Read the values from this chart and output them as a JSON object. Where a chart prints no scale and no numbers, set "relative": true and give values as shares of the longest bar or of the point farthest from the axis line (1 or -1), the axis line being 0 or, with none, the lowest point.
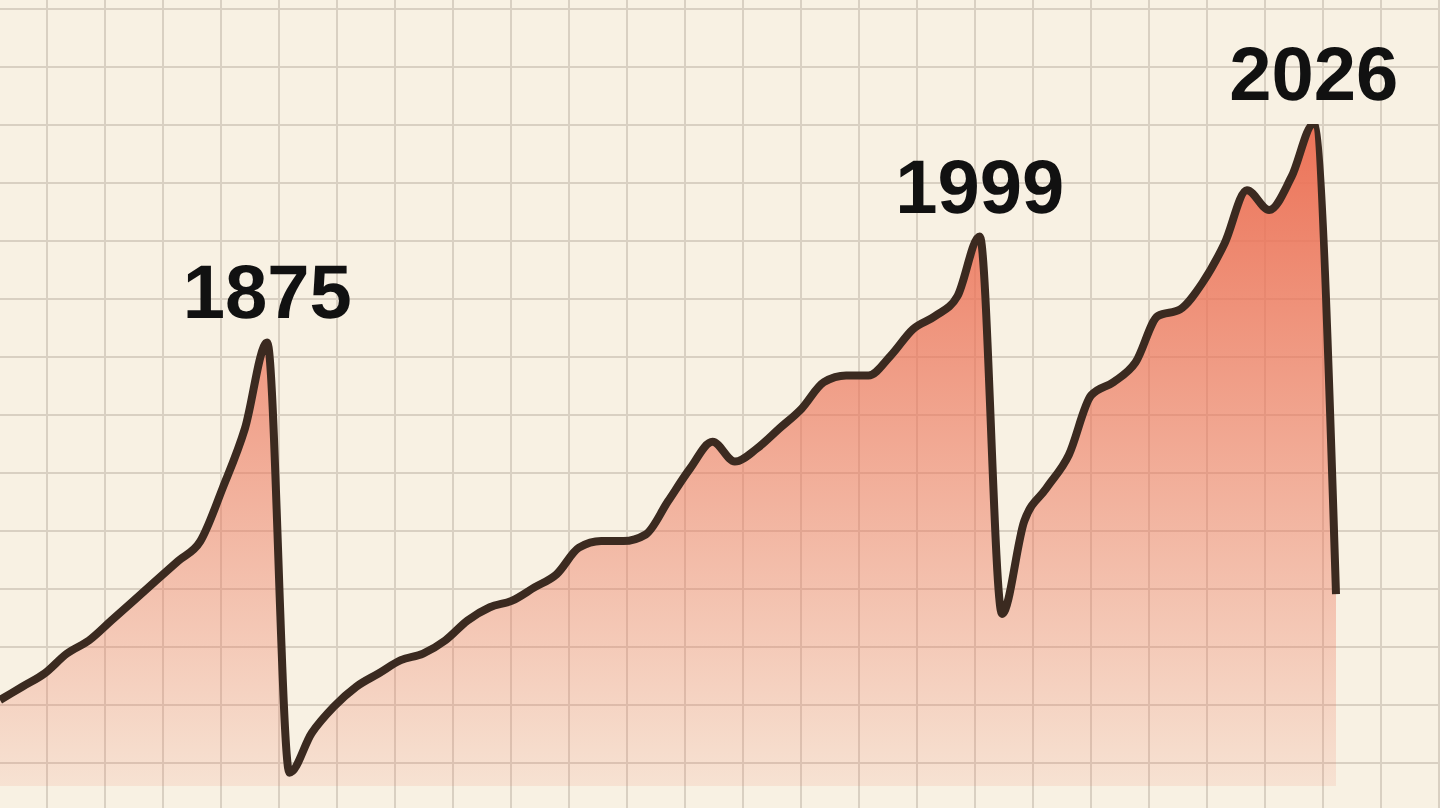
{
  "chart_data": {
    "type": "area",
    "relative": true,
    "annotations": [
      {
        "text": "1875",
        "y": 0.67
      },
      {
        "text": "1999",
        "y": 0.83
      },
      {
        "text": "2026",
        "y": 1
      }
    ],
    "categories": [
      null,
      null,
      null,
      null,
      null,
      null,
      null,
      null,
      null,
      null,
      null,
      null,
      null,
      null,
      null,
      null,
      null,
      null,
      null,
      null,
      null,
      null,
      null,
      null,
      null,
      null,
      null,
      null,
      null,
      null,
      null,
      null,
      null,
      null,
      null,
      null,
      null,
      null,
      null,
      null,
      null,
      null,
      null,
      null,
      null,
      null,
      null,
      null,
      null,
      null,
      null,
      null,
      null,
      null,
      null,
      null,
      null,
      null,
      null,
      null,
      null
    ],
    "series": [
      {
        "color": "#ec7358",
        "values": [
          0.13,
          0.15,
          0.17,
          0.2,
          0.22,
          0.25,
          0.28,
          0.31,
          0.34,
          0.37,
          0.45,
          0.54,
          0.67,
          0.02,
          0.08,
          0.12,
          0.15,
          0.17,
          0.19,
          0.2,
          0.22,
          0.25,
          0.27,
          0.28,
          0.3,
          0.32,
          0.36,
          0.37,
          0.37,
          0.38,
          0.43,
          0.48,
          0.52,
          0.49,
          0.51,
          0.54,
          0.57,
          0.61,
          0.62,
          0.62,
          0.65,
          0.69,
          0.71,
          0.74,
          0.83,
          0.26,
          0.4,
          0.45,
          0.5,
          0.59,
          0.61,
          0.64,
          0.71,
          0.72,
          0.76,
          0.82,
          0.9,
          0.87,
          0.92,
          1,
          0.29
        ]
      }
    ]
  }
}
